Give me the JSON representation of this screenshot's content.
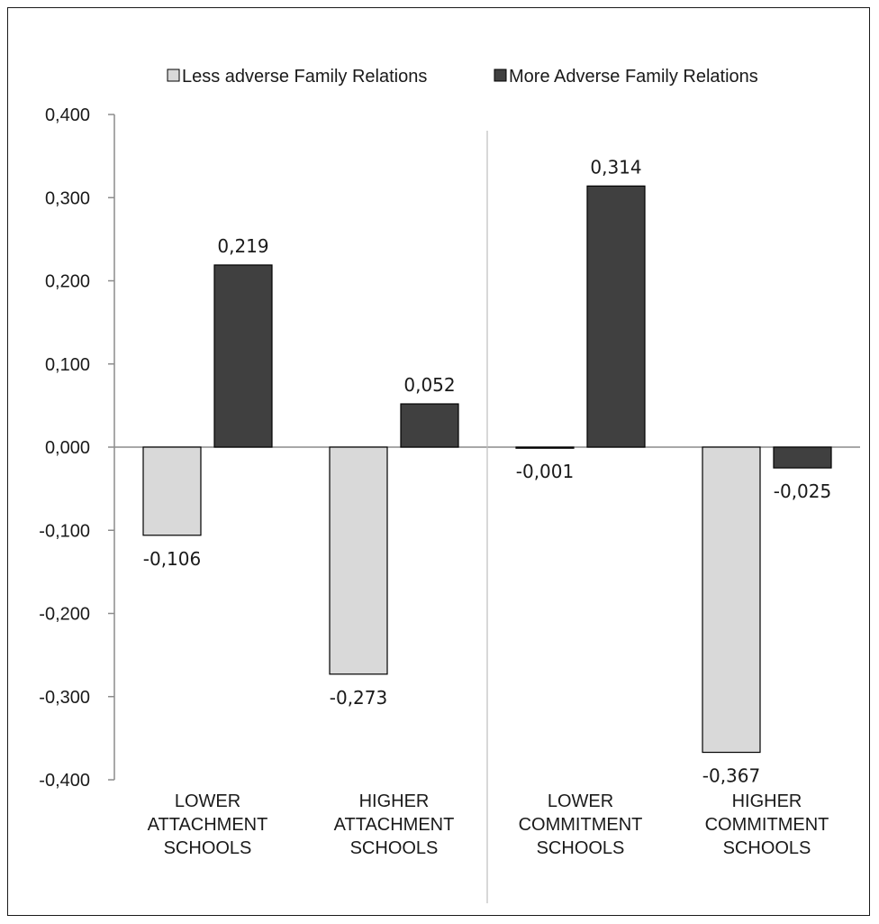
{
  "chart_data": {
    "type": "bar",
    "title": "",
    "xlabel": "",
    "ylabel": "",
    "categories": [
      [
        "LOWER",
        "ATTACHMENT",
        "SCHOOLS"
      ],
      [
        "HIGHER",
        "ATTACHMENT",
        "SCHOOLS"
      ],
      [
        "LOWER",
        "COMMITMENT",
        "SCHOOLS"
      ],
      [
        "HIGHER",
        "COMMITMENT",
        "SCHOOLS"
      ]
    ],
    "series": [
      {
        "name": "Less adverse Family Relations",
        "color": "#d9d9d9",
        "values": [
          -0.106,
          -0.273,
          -0.001,
          -0.367
        ],
        "labels": [
          "-0,106",
          "-0,273",
          "-0,001",
          "-0,367"
        ]
      },
      {
        "name": "More Adverse Family Relations",
        "color": "#404040",
        "values": [
          0.219,
          0.052,
          0.314,
          -0.025
        ],
        "labels": [
          "0,219",
          "0,052",
          "0,314",
          "-0,025"
        ]
      }
    ],
    "ylim": [
      -0.4,
      0.4
    ],
    "yticks": [
      0.4,
      0.3,
      0.2,
      0.1,
      0.0,
      -0.1,
      -0.2,
      -0.3,
      -0.4
    ],
    "ytick_labels": [
      "0,400",
      "0,300",
      "0,200",
      "0,100",
      "0,000",
      "-0,100",
      "-0,200",
      "-0,300",
      "-0,400"
    ],
    "grid": false,
    "legend_position": "top",
    "group_divider_after_category": 1
  }
}
